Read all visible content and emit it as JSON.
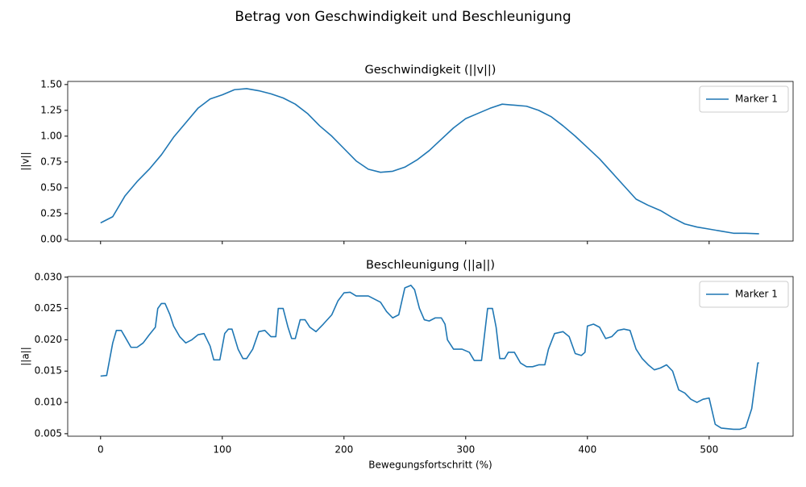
{
  "title": "Betrag von Geschwindigkeit und Beschleunigung",
  "chart_data": [
    {
      "type": "line",
      "title": "Geschwindigkeit (||v||)",
      "ylabel": "||v||",
      "x": [
        0,
        10,
        20,
        30,
        40,
        50,
        60,
        70,
        80,
        90,
        100,
        110,
        120,
        130,
        140,
        150,
        160,
        170,
        180,
        190,
        200,
        210,
        220,
        230,
        240,
        250,
        260,
        270,
        280,
        290,
        300,
        310,
        320,
        330,
        340,
        350,
        360,
        370,
        380,
        390,
        400,
        410,
        420,
        430,
        440,
        450,
        460,
        470,
        480,
        490,
        500,
        510,
        520,
        530,
        541
      ],
      "series": [
        {
          "name": "Marker 1",
          "color": "#1f77b4",
          "values": [
            0.16,
            0.22,
            0.42,
            0.56,
            0.68,
            0.82,
            0.99,
            1.13,
            1.27,
            1.36,
            1.4,
            1.45,
            1.46,
            1.44,
            1.41,
            1.37,
            1.31,
            1.22,
            1.1,
            1.0,
            0.88,
            0.76,
            0.68,
            0.65,
            0.66,
            0.7,
            0.77,
            0.86,
            0.97,
            1.08,
            1.17,
            1.22,
            1.27,
            1.31,
            1.3,
            1.29,
            1.25,
            1.19,
            1.1,
            1.0,
            0.89,
            0.78,
            0.65,
            0.52,
            0.39,
            0.33,
            0.28,
            0.21,
            0.15,
            0.12,
            0.1,
            0.08,
            0.06,
            0.06,
            0.055
          ]
        }
      ],
      "xlim": [
        -27,
        569
      ],
      "ylim": [
        -0.016,
        1.53
      ],
      "yticks": [
        {
          "value": 0,
          "label": "0.00"
        },
        {
          "value": 0.25,
          "label": "0.25"
        },
        {
          "value": 0.5,
          "label": "0.50"
        },
        {
          "value": 0.75,
          "label": "0.75"
        },
        {
          "value": 1,
          "label": "1.00"
        },
        {
          "value": 1.25,
          "label": "1.25"
        },
        {
          "value": 1.5,
          "label": "1.50"
        }
      ],
      "legend": "upper right"
    },
    {
      "type": "line",
      "title": "Beschleunigung (||a||)",
      "ylabel": "||a||",
      "xlabel": "Bewegungsfortschritt (%)",
      "x": [
        0,
        5,
        10,
        13,
        17,
        20,
        25,
        30,
        35,
        40,
        45,
        47,
        50,
        53,
        57,
        60,
        65,
        70,
        75,
        80,
        85,
        90,
        93,
        98,
        102,
        105,
        108,
        113,
        117,
        120,
        125,
        130,
        135,
        140,
        144,
        146,
        150,
        154,
        157,
        160,
        164,
        168,
        172,
        177,
        183,
        190,
        195,
        200,
        205,
        210,
        215,
        220,
        230,
        235,
        240,
        245,
        250,
        255,
        258,
        262,
        266,
        270,
        275,
        280,
        283,
        285,
        290,
        297,
        303,
        307,
        313,
        318,
        322,
        325,
        328,
        332,
        335,
        340,
        345,
        350,
        355,
        360,
        365,
        368,
        373,
        380,
        385,
        390,
        395,
        398,
        400,
        405,
        410,
        415,
        420,
        425,
        430,
        435,
        440,
        445,
        450,
        455,
        460,
        465,
        470,
        475,
        480,
        485,
        490,
        495,
        500,
        505,
        510,
        520,
        525,
        530,
        535,
        540,
        541
      ],
      "series": [
        {
          "name": "Marker 1",
          "color": "#1f77b4",
          "values": [
            0.0142,
            0.0143,
            0.0195,
            0.0215,
            0.0215,
            0.0205,
            0.0188,
            0.0188,
            0.0195,
            0.0208,
            0.022,
            0.025,
            0.0258,
            0.0258,
            0.024,
            0.0222,
            0.0205,
            0.0195,
            0.02,
            0.0208,
            0.021,
            0.019,
            0.0168,
            0.0168,
            0.021,
            0.0217,
            0.0217,
            0.0185,
            0.017,
            0.017,
            0.0185,
            0.0213,
            0.0215,
            0.0205,
            0.0205,
            0.025,
            0.025,
            0.022,
            0.0202,
            0.0202,
            0.0232,
            0.0232,
            0.022,
            0.0213,
            0.0225,
            0.024,
            0.0262,
            0.0275,
            0.0276,
            0.027,
            0.027,
            0.027,
            0.026,
            0.0245,
            0.0235,
            0.024,
            0.0283,
            0.0287,
            0.028,
            0.025,
            0.0232,
            0.023,
            0.0235,
            0.0235,
            0.0225,
            0.02,
            0.0185,
            0.0185,
            0.018,
            0.0167,
            0.0167,
            0.025,
            0.025,
            0.022,
            0.017,
            0.017,
            0.018,
            0.018,
            0.0163,
            0.0157,
            0.0157,
            0.016,
            0.016,
            0.0185,
            0.021,
            0.0213,
            0.0205,
            0.0178,
            0.0175,
            0.018,
            0.0222,
            0.0225,
            0.022,
            0.0202,
            0.0205,
            0.0215,
            0.0217,
            0.0215,
            0.0185,
            0.017,
            0.016,
            0.0152,
            0.0155,
            0.016,
            0.015,
            0.012,
            0.0115,
            0.0105,
            0.01,
            0.0105,
            0.0107,
            0.0065,
            0.0059,
            0.0057,
            0.0057,
            0.006,
            0.009,
            0.0163,
            0.0163
          ]
        }
      ],
      "xlim": [
        -27,
        569
      ],
      "ylim": [
        0.0046,
        0.0301
      ],
      "xticks": [
        0,
        100,
        200,
        300,
        400,
        500
      ],
      "yticks": [
        0.005,
        {
          "value": 0.01,
          "label": "0.010"
        },
        0.015,
        {
          "value": 0.02,
          "label": "0.020"
        },
        0.025,
        {
          "value": 0.03,
          "label": "0.030"
        }
      ],
      "legend": "upper right"
    }
  ]
}
